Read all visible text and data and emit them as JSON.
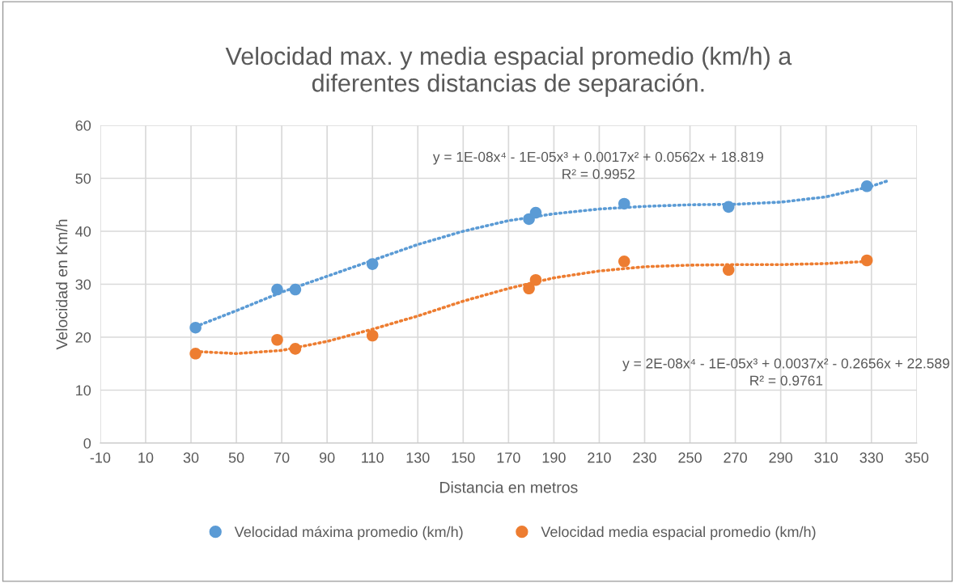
{
  "chart_data": {
    "type": "scatter",
    "title": "Velocidad max. y media espacial promedio (km/h) a\ndiferentes distancias de separación.",
    "xlabel": "Distancia en metros",
    "ylabel": "Velocidad en Km/h",
    "series": [
      {
        "name": "Velocidad máxima promedio (km/h)",
        "marker": "circle",
        "color": "#5b9bd5",
        "x": [
          32,
          68,
          76,
          110,
          179,
          182,
          221,
          267,
          328
        ],
        "values": [
          21.8,
          29,
          29,
          33.8,
          42.3,
          43.5,
          45.2,
          44.6,
          48.5
        ]
      },
      {
        "name": "Velocidad media espacial promedio (km/h)",
        "marker": "circle",
        "color": "#ed7d31",
        "x": [
          32,
          68,
          76,
          110,
          179,
          182,
          221,
          267,
          328
        ],
        "values": [
          16.9,
          19.5,
          17.8,
          20.3,
          29.2,
          30.8,
          34.3,
          32.7,
          34.5
        ]
      },
      {
        "type": "line",
        "line_style": "dotted",
        "marker": "none",
        "color": "#5b9bd5",
        "x": [
          32,
          50,
          70,
          90,
          110,
          130,
          150,
          170,
          190,
          210,
          230,
          250,
          270,
          290,
          310,
          330,
          337
        ],
        "values": [
          22,
          25,
          28.5,
          31.5,
          34.5,
          37.5,
          40,
          42,
          43.3,
          44.2,
          44.7,
          45,
          45.1,
          45.5,
          46.5,
          48.5,
          49.5
        ]
      },
      {
        "type": "line",
        "line_style": "dotted",
        "marker": "none",
        "color": "#ed7d31",
        "x": [
          32,
          50,
          70,
          90,
          110,
          130,
          150,
          170,
          190,
          210,
          230,
          250,
          270,
          290,
          310,
          328
        ],
        "values": [
          17.3,
          16.9,
          17.5,
          19.2,
          21.5,
          24,
          26.8,
          29.2,
          31.2,
          32.5,
          33.3,
          33.6,
          33.7,
          33.7,
          33.9,
          34.3
        ]
      }
    ],
    "annotations": [
      "y = 1E-08x⁴ - 1E-05x³ + 0.0017x² + 0.0562x + 18.819\nR² = 0.9952",
      "y = 2E-08x⁴ - 1E-05x³ + 0.0037x² - 0.2656x + 22.589\nR² = 0.9761"
    ],
    "xlim": [
      -10,
      350
    ],
    "xticks": [
      -10,
      10,
      30,
      50,
      70,
      90,
      110,
      130,
      150,
      170,
      190,
      210,
      230,
      250,
      270,
      290,
      310,
      330,
      350
    ],
    "ylim": [
      0,
      60
    ],
    "yticks": [
      0,
      10,
      20,
      30,
      40,
      50,
      60
    ],
    "grid": true,
    "legend": "bottom"
  }
}
